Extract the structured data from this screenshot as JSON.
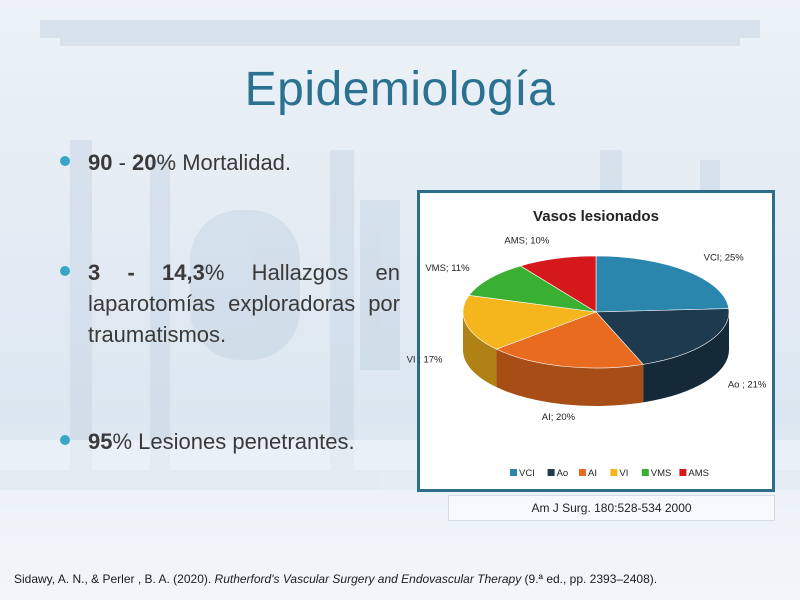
{
  "slide": {
    "title": "Epidemiología"
  },
  "bullets": [
    {
      "bold1": "90",
      "mid": " - ",
      "bold2": "20",
      "rest": "% Mortalidad."
    },
    {
      "bold": "3 - 14,3",
      "rest": "% Hallazgos en laparotomías exploradoras por traumatismos."
    },
    {
      "bold": "95",
      "rest": "% Lesiones penetrantes."
    }
  ],
  "chart_data": {
    "type": "pie",
    "title": "Vasos lesionados",
    "legend_position": "bottom",
    "slices": [
      {
        "name": "VCI",
        "value": 25,
        "label": "VCI; 25%",
        "color": "#2a86ad"
      },
      {
        "name": "Ao",
        "value": 21,
        "label": "Ao ; 21%",
        "color": "#1d3a4f"
      },
      {
        "name": "AI",
        "value": 20,
        "label": "AI; 20%",
        "color": "#e86b1f"
      },
      {
        "name": "VI",
        "value": 17,
        "label": "VI ; 17%",
        "color": "#f5b51d"
      },
      {
        "name": "VMS",
        "value": 11,
        "label": "VMS;  11%",
        "color": "#39b031"
      },
      {
        "name": "AMS",
        "value": 10,
        "label": "AMS;  10%",
        "color": "#d4181c"
      }
    ]
  },
  "source_note": "Am J Surg. 180:528-534 2000",
  "footer": {
    "authors": "Sidawy, A. N., & Perler , B. A. (2020). ",
    "book": "Rutherford's Vascular Surgery and Endovascular Therapy",
    "rest": " (9.ª ed., pp. 2393–2408)."
  }
}
